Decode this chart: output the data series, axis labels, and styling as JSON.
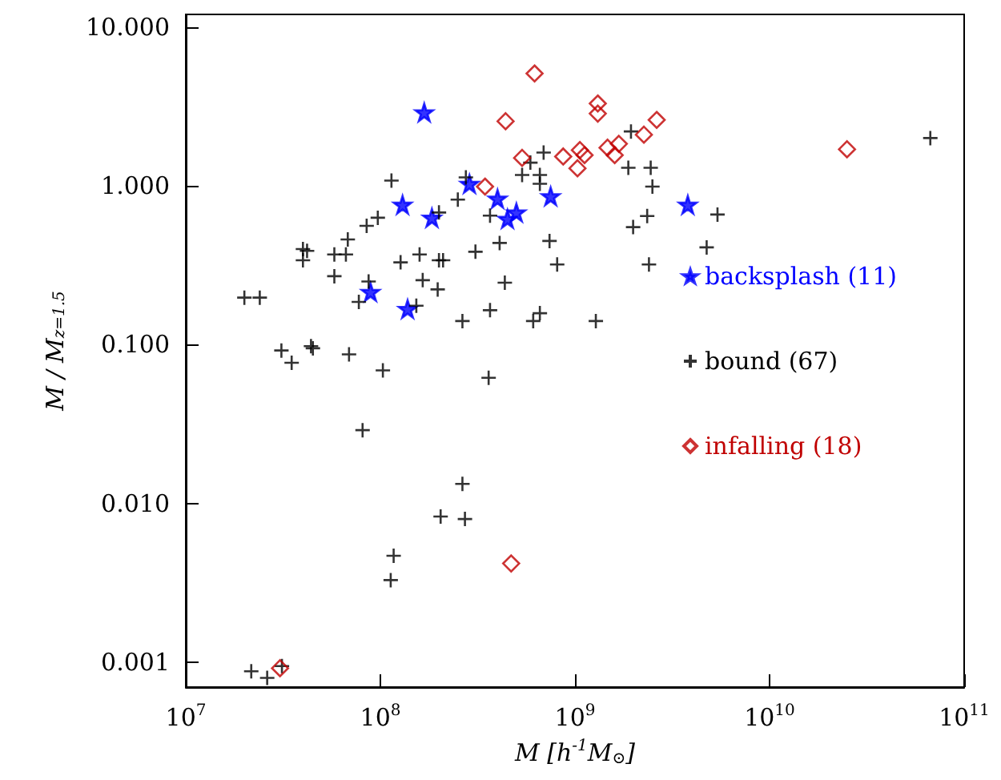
{
  "chart_data": {
    "type": "scatter",
    "xlabel": "M [h$^{-1}$M$_{⊙}$]",
    "ylabel": "M / M$_{z=1.5}$",
    "log": "xy",
    "grid": false,
    "legend": "right",
    "xlim": [
      10000000.0,
      100000000000.0
    ],
    "xticks": [
      {
        "value": 10000000.0,
        "label": "10$^{7}$"
      },
      {
        "value": 100000000.0,
        "label": "10$^{8}$"
      },
      {
        "value": 1000000000.0,
        "label": "10$^{9}$"
      },
      {
        "value": 10000000000.0,
        "label": "10$^{10}$"
      },
      {
        "value": 100000000000.0,
        "label": "10$^{11}$"
      }
    ],
    "ylim": [
      0.0007,
      12
    ],
    "yticks": [
      {
        "value": 0.001,
        "label": "0.001"
      },
      {
        "value": 0.01,
        "label": "0.010"
      },
      {
        "value": 0.1,
        "label": "0.100"
      },
      {
        "value": 1,
        "label": "1.000"
      },
      {
        "value": 10,
        "label": "10.000"
      }
    ],
    "series": [
      {
        "name": "backsplash (11)",
        "color": "#0000ff",
        "marker": "star",
        "x": [
          168000000.0,
          130000000.0,
          184000000.0,
          287000000.0,
          400000000.0,
          450000000.0,
          500000000.0,
          750000000.0,
          3800000000.0,
          89000000.0,
          138000000.0
        ],
        "values": [
          2.9,
          0.76,
          0.63,
          1.03,
          0.83,
          0.62,
          0.68,
          0.86,
          0.76,
          0.215,
          0.168
        ]
      },
      {
        "name": "bound (67)",
        "color": "#000000",
        "marker": "cross",
        "x": [
          20000000.0,
          24000000.0,
          31000000.0,
          35000000.0,
          44000000.0,
          45000000.0,
          40000000.0,
          42000000.0,
          40000000.0,
          58000000.0,
          66500000.0,
          68000000.0,
          58000000.0,
          69000000.0,
          77500000.0,
          85000000.0,
          97000000.0,
          87000000.0,
          81000000.0,
          103000000.0,
          114000000.0,
          127000000.0,
          159000000.0,
          165000000.0,
          153000000.0,
          200000000.0,
          200000000.0,
          210000000.0,
          197000000.0,
          250000000.0,
          275000000.0,
          264000000.0,
          308000000.0,
          366000000.0,
          410000000.0,
          436000000.0,
          366000000.0,
          360000000.0,
          264000000.0,
          204000000.0,
          272000000.0,
          117000000.0,
          113000000.0,
          21700000.0,
          26200000.0,
          31200000.0,
          535000000.0,
          590000000.0,
          690000000.0,
          660000000.0,
          660000000.0,
          740000000.0,
          810000000.0,
          610000000.0,
          660000000.0,
          1280000000.0,
          1940000000.0,
          1880000000.0,
          2450000000.0,
          2500000000.0,
          2350000000.0,
          1990000000.0,
          2400000000.0,
          5400000000.0,
          4750000000.0,
          67000000000.0
        ],
        "values": [
          0.198,
          0.198,
          0.092,
          0.077,
          0.098,
          0.095,
          0.4,
          0.39,
          0.34,
          0.37,
          0.37,
          0.46,
          0.27,
          0.087,
          0.186,
          0.56,
          0.63,
          0.25,
          0.029,
          0.069,
          1.08,
          0.33,
          0.37,
          0.255,
          0.176,
          0.68,
          0.34,
          0.34,
          0.223,
          0.82,
          1.13,
          0.141,
          0.385,
          0.65,
          0.437,
          0.246,
          0.165,
          0.062,
          0.0133,
          0.0083,
          0.008,
          0.0047,
          0.0033,
          0.00088,
          0.0008,
          0.00095,
          1.17,
          1.4,
          1.62,
          1.17,
          1.03,
          0.45,
          0.32,
          0.141,
          0.158,
          0.141,
          2.2,
          1.3,
          1.3,
          0.99,
          0.646,
          0.55,
          0.32,
          0.66,
          0.41,
          2.0
        ]
      },
      {
        "name": "infalling (18)",
        "color": "#c00000",
        "marker": "diamond",
        "x": [
          620000000.0,
          440000000.0,
          1310000000.0,
          1310000000.0,
          2630000000.0,
          2260000000.0,
          1470000000.0,
          1680000000.0,
          1600000000.0,
          870000000.0,
          1060000000.0,
          1120000000.0,
          1030000000.0,
          535000000.0,
          345000000.0,
          25000000000.0,
          470000000.0,
          30500000.0
        ],
        "values": [
          5.1,
          2.55,
          3.3,
          2.85,
          2.6,
          2.1,
          1.74,
          1.84,
          1.56,
          1.53,
          1.68,
          1.56,
          1.29,
          1.5,
          0.99,
          1.7,
          0.0042,
          0.00092
        ]
      }
    ]
  }
}
